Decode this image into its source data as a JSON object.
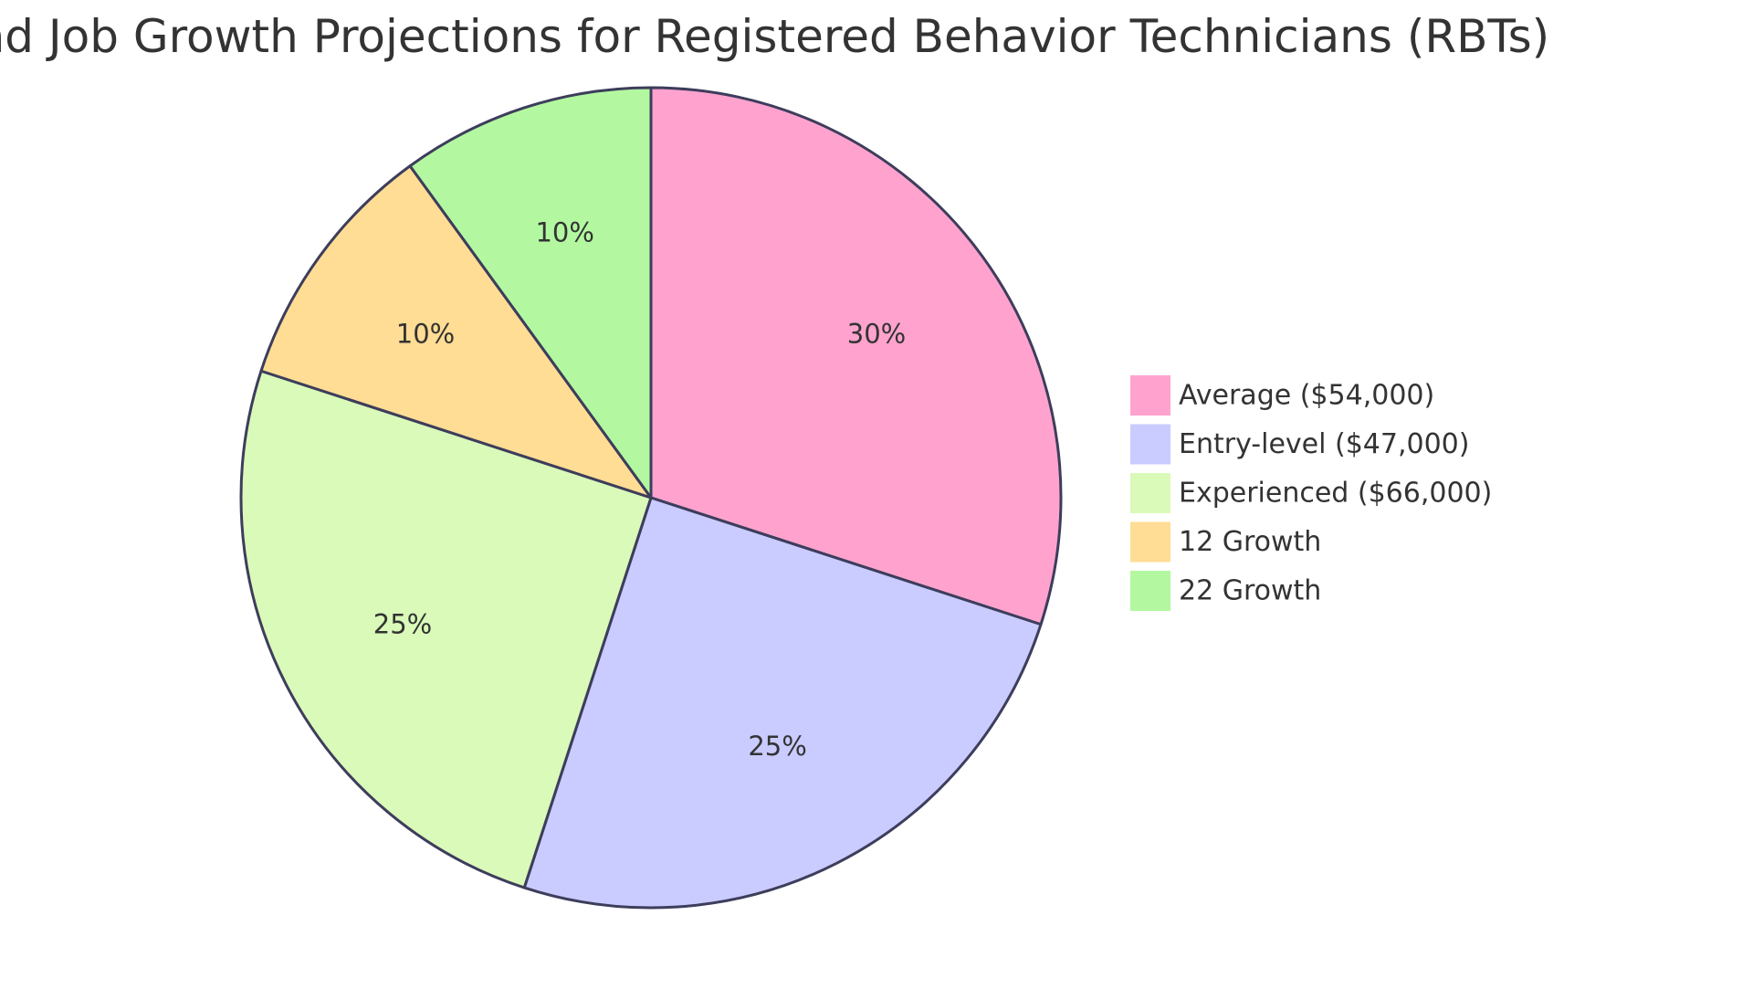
{
  "chart_data": {
    "type": "pie",
    "title": "Salaries and Job Growth Projections for Registered Behavior Technicians (RBTs)",
    "slices": [
      {
        "label": "Average ($54,000)",
        "value": 30,
        "display": "30%",
        "color": "#FFA3CE"
      },
      {
        "label": "Entry-level ($47,000)",
        "value": 25,
        "display": "25%",
        "color": "#CACBFF"
      },
      {
        "label": "Experienced ($66,000)",
        "value": 25,
        "display": "25%",
        "color": "#DAFAB9"
      },
      {
        "label": "12 Growth",
        "value": 10,
        "display": "10%",
        "color": "#FFDD94"
      },
      {
        "label": "22 Growth",
        "value": 10,
        "display": "10%",
        "color": "#B3F8A1"
      }
    ],
    "legend_position": "right",
    "stroke_color": "#3D3D5C"
  }
}
